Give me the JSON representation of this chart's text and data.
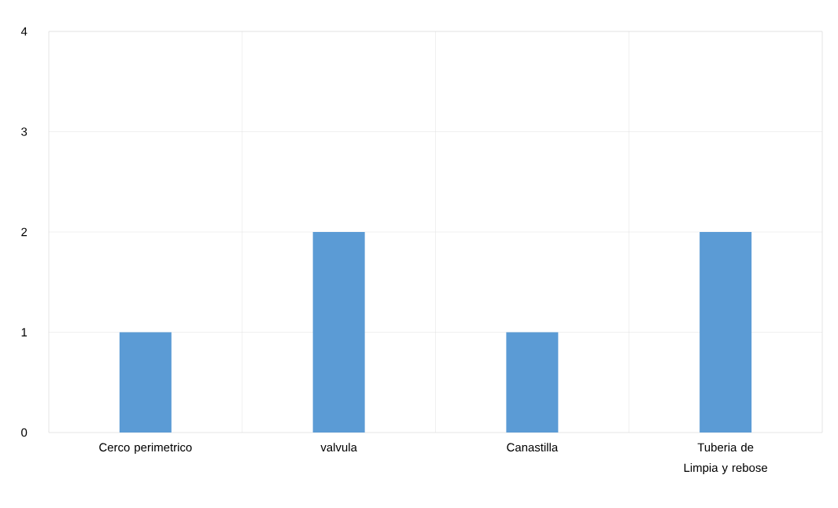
{
  "chart_data": {
    "type": "bar",
    "categories": [
      "Cerco perimetrico",
      "valvula",
      "Canastilla",
      "Tuberia de Limpia y rebose"
    ],
    "values": [
      1,
      2,
      1,
      2
    ],
    "color": "#5b9bd5",
    "ylim": [
      0,
      4
    ],
    "yticks": [
      0,
      1,
      2,
      3,
      4
    ],
    "grid": true
  }
}
